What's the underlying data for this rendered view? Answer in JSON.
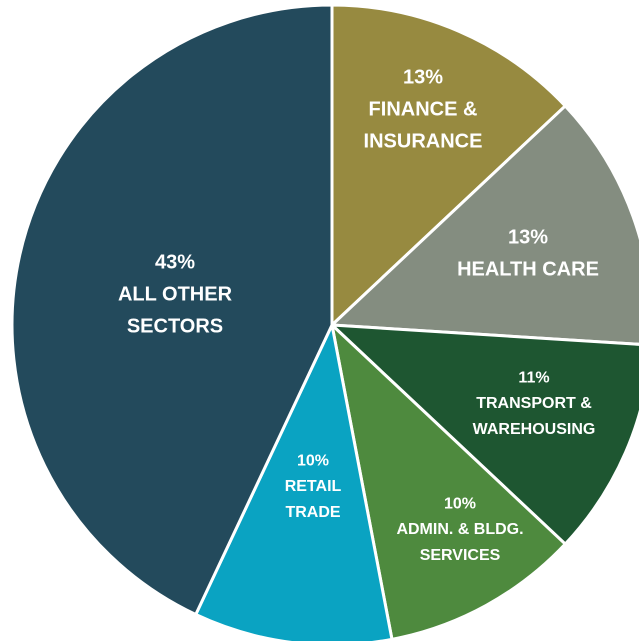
{
  "chart_data": {
    "type": "pie",
    "categories": [
      [
        "FINANCE &",
        "INSURANCE"
      ],
      [
        "HEALTH CARE"
      ],
      [
        "TRANSPORT &",
        "WAREHOUSING"
      ],
      [
        "ADMIN. & BLDG.",
        "SERVICES"
      ],
      [
        "RETAIL",
        "TRADE"
      ],
      [
        "ALL OTHER",
        "SECTORS"
      ]
    ],
    "values": [
      13,
      13,
      11,
      10,
      10,
      43
    ],
    "value_labels": [
      "13%",
      "13%",
      "11%",
      "10%",
      "10%",
      "43%"
    ],
    "colors": [
      "#978a40",
      "#848d80",
      "#1e5631",
      "#4e8a3e",
      "#0aa3c2",
      "#234a5c"
    ]
  }
}
